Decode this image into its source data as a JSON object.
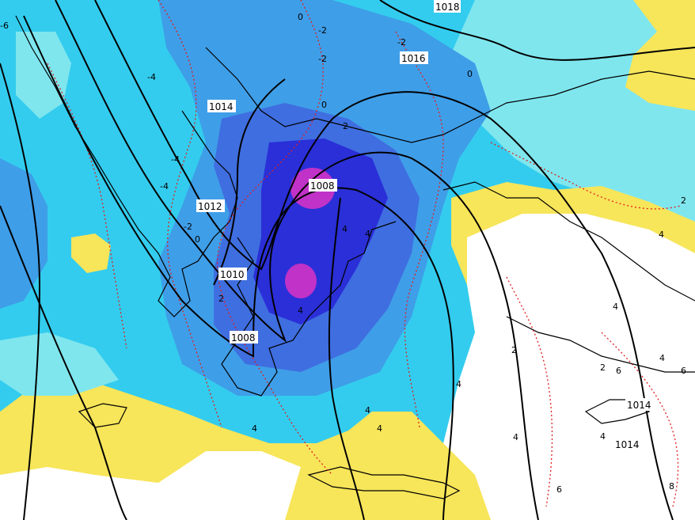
{
  "map": {
    "colors": {
      "sea_light": "#7fe6ee",
      "cyan": "#33ccee",
      "mid_blue": "#3f9ee8",
      "blue": "#3f6ee0",
      "deep_blue": "#2a2fd8",
      "magenta": "#c032c8",
      "yellow": "#f7e55a",
      "white": "#ffffff",
      "coast": "#000000",
      "isobar": "#000000",
      "isotherm": "#e02020"
    },
    "isobar_labels": [
      "1018",
      "1016",
      "1014",
      "1012",
      "1010",
      "1008",
      "1008",
      "1014",
      "1014"
    ],
    "temperature_labels": [
      "0",
      "-2",
      "-2",
      "-2",
      "-4",
      "-4",
      "-4",
      "-2",
      "0",
      "0",
      "2",
      "0",
      "4",
      "4",
      "2",
      "4",
      "2",
      "2",
      "4",
      "4",
      "4",
      "4",
      "4",
      "4",
      "4",
      "4",
      "6",
      "6",
      "8",
      "2",
      "4",
      "6",
      "-6"
    ]
  }
}
